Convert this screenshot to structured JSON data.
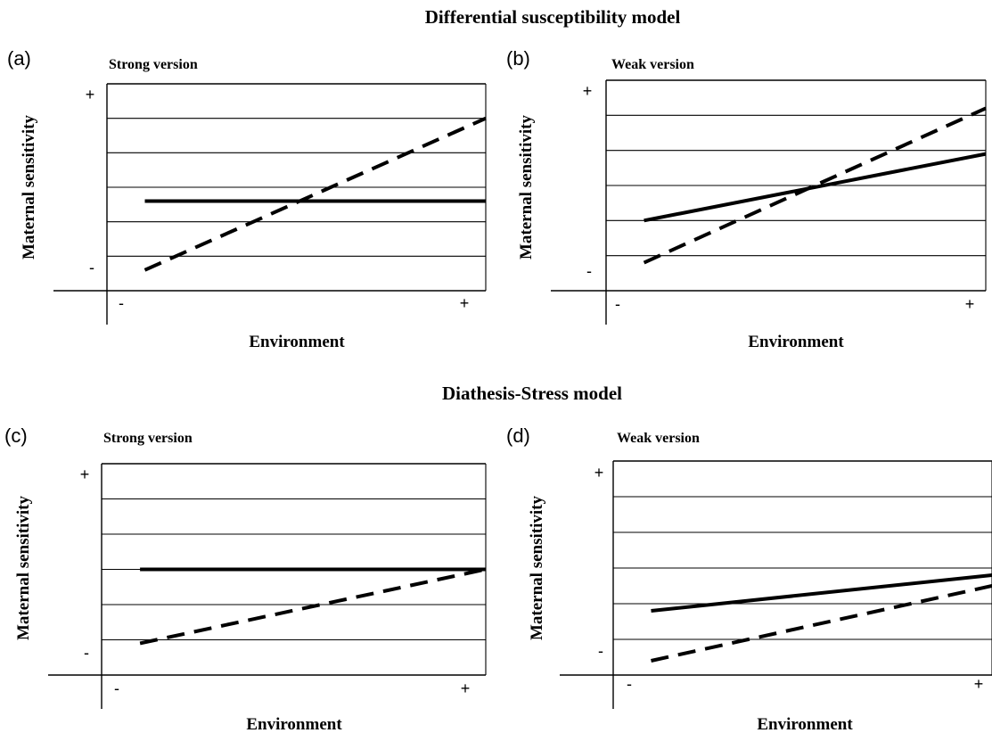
{
  "figure": {
    "sections": [
      {
        "title": "Differential susceptibility model"
      },
      {
        "title": "Diathesis-Stress model"
      }
    ]
  },
  "chart_data": [
    {
      "type": "line",
      "panel_label": "(a)",
      "title": "Strong version",
      "xlabel": "Environment",
      "ylabel": "Maternal sensitivity",
      "x_ticks": [
        "-",
        "+"
      ],
      "y_ticks": [
        "-",
        "+"
      ],
      "xlim": [
        0,
        1
      ],
      "ylim": [
        0,
        6
      ],
      "grid": true,
      "series": [
        {
          "style": "solid",
          "x": [
            0.1,
            1.0
          ],
          "y": [
            2.6,
            2.6
          ]
        },
        {
          "style": "dashed",
          "x": [
            0.1,
            1.0
          ],
          "y": [
            0.6,
            5.0
          ]
        }
      ]
    },
    {
      "type": "line",
      "panel_label": "(b)",
      "title": "Weak version",
      "xlabel": "Environment",
      "ylabel": "Maternal sensitivity",
      "x_ticks": [
        "-",
        "+"
      ],
      "y_ticks": [
        "-",
        "+"
      ],
      "xlim": [
        0,
        1
      ],
      "ylim": [
        0,
        6
      ],
      "grid": true,
      "series": [
        {
          "style": "solid",
          "x": [
            0.1,
            1.0
          ],
          "y": [
            2.0,
            3.9
          ]
        },
        {
          "style": "dashed",
          "x": [
            0.1,
            1.0
          ],
          "y": [
            0.8,
            5.2
          ]
        }
      ]
    },
    {
      "type": "line",
      "panel_label": "(c)",
      "title": "Strong version",
      "xlabel": "Environment",
      "ylabel": "Maternal sensitivity",
      "x_ticks": [
        "-",
        "+"
      ],
      "y_ticks": [
        "-",
        "+"
      ],
      "xlim": [
        0,
        1
      ],
      "ylim": [
        0,
        6
      ],
      "grid": true,
      "series": [
        {
          "style": "solid",
          "x": [
            0.1,
            1.0
          ],
          "y": [
            3.0,
            3.0
          ]
        },
        {
          "style": "dashed",
          "x": [
            0.1,
            1.0
          ],
          "y": [
            0.9,
            3.0
          ]
        }
      ]
    },
    {
      "type": "line",
      "panel_label": "(d)",
      "title": "Weak version",
      "xlabel": "Environment",
      "ylabel": "Maternal sensitivity",
      "x_ticks": [
        "-",
        "+"
      ],
      "y_ticks": [
        "-",
        "+"
      ],
      "xlim": [
        0,
        1
      ],
      "ylim": [
        0,
        6
      ],
      "grid": true,
      "series": [
        {
          "style": "solid",
          "x": [
            0.1,
            1.0
          ],
          "y": [
            1.8,
            2.8
          ]
        },
        {
          "style": "dashed",
          "x": [
            0.1,
            1.0
          ],
          "y": [
            0.4,
            2.5
          ]
        }
      ]
    }
  ]
}
